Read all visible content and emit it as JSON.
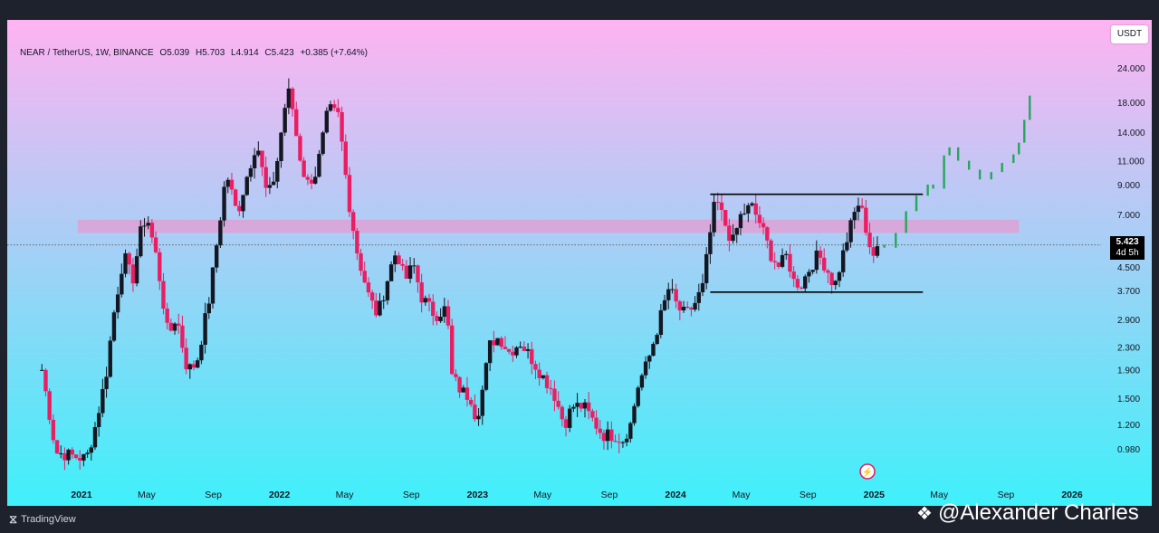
{
  "header": {
    "symbol": "NEAR / TetherUS, 1W, BINANCE",
    "open": "O5.039",
    "high": "H5.703",
    "low": "L4.914",
    "close": "C5.423",
    "change": "+0.385 (+7.64%)"
  },
  "unit_button": "USDT",
  "current_price": {
    "value": "5.423",
    "countdown": "4d 5h"
  },
  "footer": {
    "logo_text": "TradingView",
    "watermark": "@Alexander Charles"
  },
  "colors": {
    "up": "#131722",
    "down": "#e91e63",
    "forecast": "#26a65b",
    "zone": "#e59bd0",
    "bg_top": "#ffb3f2",
    "bg_bottom": "#3ff0fa"
  },
  "chart_data": {
    "type": "candlestick",
    "title": "NEAR / TetherUS, 1W, BINANCE",
    "y_scale": "log",
    "ylim": [
      0.88,
      27.5
    ],
    "y_ticks": [
      "24.000",
      "18.000",
      "14.000",
      "11.000",
      "9.000",
      "7.000",
      "4.500",
      "3.700",
      "2.900",
      "2.300",
      "1.900",
      "1.500",
      "1.200",
      "0.980"
    ],
    "x_ticks": [
      {
        "label": "2021",
        "date": "2021-01"
      },
      {
        "label": "May",
        "date": "2021-05"
      },
      {
        "label": "Sep",
        "date": "2021-09"
      },
      {
        "label": "2022",
        "date": "2022-01"
      },
      {
        "label": "May",
        "date": "2022-05"
      },
      {
        "label": "Sep",
        "date": "2022-09"
      },
      {
        "label": "2023",
        "date": "2023-01"
      },
      {
        "label": "May",
        "date": "2023-05"
      },
      {
        "label": "Sep",
        "date": "2023-09"
      },
      {
        "label": "2024",
        "date": "2024-01"
      },
      {
        "label": "May",
        "date": "2024-05"
      },
      {
        "label": "Sep",
        "date": "2024-09"
      },
      {
        "label": "2025",
        "date": "2025-01"
      },
      {
        "label": "May",
        "date": "2025-05"
      },
      {
        "label": "Sep",
        "date": "2025-09"
      },
      {
        "label": "2026",
        "date": "2026-01"
      }
    ],
    "anchor_points": [
      [
        "2020-10-20",
        1.9
      ],
      [
        "2020-11-15",
        0.95
      ],
      [
        "2021-01-10",
        0.9
      ],
      [
        "2021-01-25",
        1.15
      ],
      [
        "2021-02-15",
        1.8
      ],
      [
        "2021-03-01",
        3.0
      ],
      [
        "2021-03-20",
        5.0
      ],
      [
        "2021-04-05",
        4.0
      ],
      [
        "2021-04-20",
        6.0
      ],
      [
        "2021-05-01",
        7.0
      ],
      [
        "2021-05-20",
        4.8
      ],
      [
        "2021-06-10",
        2.5
      ],
      [
        "2021-06-25",
        3.0
      ],
      [
        "2021-07-15",
        1.9
      ],
      [
        "2021-08-01",
        2.0
      ],
      [
        "2021-08-25",
        3.5
      ],
      [
        "2021-09-10",
        6.0
      ],
      [
        "2021-09-25",
        10.0
      ],
      [
        "2021-10-15",
        7.0
      ],
      [
        "2021-11-01",
        9.5
      ],
      [
        "2021-11-20",
        13.0
      ],
      [
        "2021-12-10",
        8.0
      ],
      [
        "2021-12-25",
        10.0
      ],
      [
        "2022-01-10",
        17.0
      ],
      [
        "2022-01-20",
        20.0
      ],
      [
        "2022-02-05",
        12.0
      ],
      [
        "2022-02-20",
        9.0
      ],
      [
        "2022-03-10",
        10.0
      ],
      [
        "2022-04-01",
        17.0
      ],
      [
        "2022-04-20",
        16.0
      ],
      [
        "2022-05-08",
        8.0
      ],
      [
        "2022-05-25",
        5.0
      ],
      [
        "2022-06-15",
        3.5
      ],
      [
        "2022-07-01",
        3.0
      ],
      [
        "2022-07-25",
        4.5
      ],
      [
        "2022-08-05",
        5.2
      ],
      [
        "2022-08-20",
        4.0
      ],
      [
        "2022-09-05",
        4.6
      ],
      [
        "2022-09-20",
        3.5
      ],
      [
        "2022-10-15",
        3.0
      ],
      [
        "2022-11-05",
        3.2
      ],
      [
        "2022-11-15",
        1.8
      ],
      [
        "2022-12-01",
        1.6
      ],
      [
        "2022-12-20",
        1.5
      ],
      [
        "2022-12-30",
        1.25
      ],
      [
        "2023-01-10",
        1.6
      ],
      [
        "2023-01-25",
        2.4
      ],
      [
        "2023-02-10",
        2.5
      ],
      [
        "2023-03-01",
        2.2
      ],
      [
        "2023-03-20",
        2.4
      ],
      [
        "2023-04-10",
        2.1
      ],
      [
        "2023-05-01",
        1.8
      ],
      [
        "2023-05-20",
        1.6
      ],
      [
        "2023-06-10",
        1.2
      ],
      [
        "2023-06-25",
        1.4
      ],
      [
        "2023-07-15",
        1.4
      ],
      [
        "2023-08-01",
        1.25
      ],
      [
        "2023-08-20",
        1.1
      ],
      [
        "2023-09-10",
        1.1
      ],
      [
        "2023-09-25",
        1.05
      ],
      [
        "2023-10-10",
        1.2
      ],
      [
        "2023-10-25",
        1.7
      ],
      [
        "2023-11-10",
        2.0
      ],
      [
        "2023-12-01",
        2.8
      ],
      [
        "2023-12-20",
        3.8
      ],
      [
        "2024-01-05",
        3.2
      ],
      [
        "2024-01-20",
        3.0
      ],
      [
        "2024-02-05",
        3.3
      ],
      [
        "2024-02-20",
        3.8
      ],
      [
        "2024-03-05",
        6.0
      ],
      [
        "2024-03-15",
        8.0
      ],
      [
        "2024-04-01",
        6.5
      ],
      [
        "2024-04-15",
        5.5
      ],
      [
        "2024-05-01",
        7.0
      ],
      [
        "2024-05-20",
        7.5
      ],
      [
        "2024-06-05",
        6.5
      ],
      [
        "2024-06-25",
        5.0
      ],
      [
        "2024-07-10",
        4.5
      ],
      [
        "2024-07-25",
        5.0
      ],
      [
        "2024-08-05",
        4.0
      ],
      [
        "2024-08-20",
        3.9
      ],
      [
        "2024-09-05",
        4.5
      ],
      [
        "2024-09-20",
        5.0
      ],
      [
        "2024-10-05",
        4.5
      ],
      [
        "2024-10-20",
        3.8
      ],
      [
        "2024-11-10",
        5.5
      ],
      [
        "2024-11-25",
        7.0
      ],
      [
        "2024-12-05",
        7.8
      ],
      [
        "2024-12-15",
        6.5
      ],
      [
        "2024-12-28",
        5.0
      ],
      [
        "2025-01-05",
        5.0
      ],
      [
        "2025-01-12",
        5.423
      ]
    ],
    "forecast_points": [
      [
        "2025-01-20",
        5.3
      ],
      [
        "2025-02-10",
        6.0
      ],
      [
        "2025-03-01",
        7.2
      ],
      [
        "2025-03-20",
        8.2
      ],
      [
        "2025-04-10",
        9.0
      ],
      [
        "2025-04-20",
        8.7
      ],
      [
        "2025-05-10",
        11.5
      ],
      [
        "2025-05-20",
        12.3
      ],
      [
        "2025-06-05",
        11.0
      ],
      [
        "2025-06-25",
        10.2
      ],
      [
        "2025-07-15",
        9.4
      ],
      [
        "2025-08-05",
        10.0
      ],
      [
        "2025-08-25",
        10.8
      ],
      [
        "2025-09-15",
        11.6
      ],
      [
        "2025-09-25",
        12.8
      ],
      [
        "2025-10-05",
        15.5
      ],
      [
        "2025-10-15",
        19.0
      ]
    ],
    "annotations": {
      "resistance_zone": {
        "low": 6.0,
        "high": 6.7,
        "from": "2020-12-25",
        "to": "2025-09-25"
      },
      "range_top": {
        "value": 8.3,
        "from": "2024-03-05",
        "to": "2025-04-01"
      },
      "range_bottom": {
        "value": 3.65,
        "from": "2024-03-05",
        "to": "2025-04-01"
      },
      "current_price_line": 5.423
    }
  }
}
